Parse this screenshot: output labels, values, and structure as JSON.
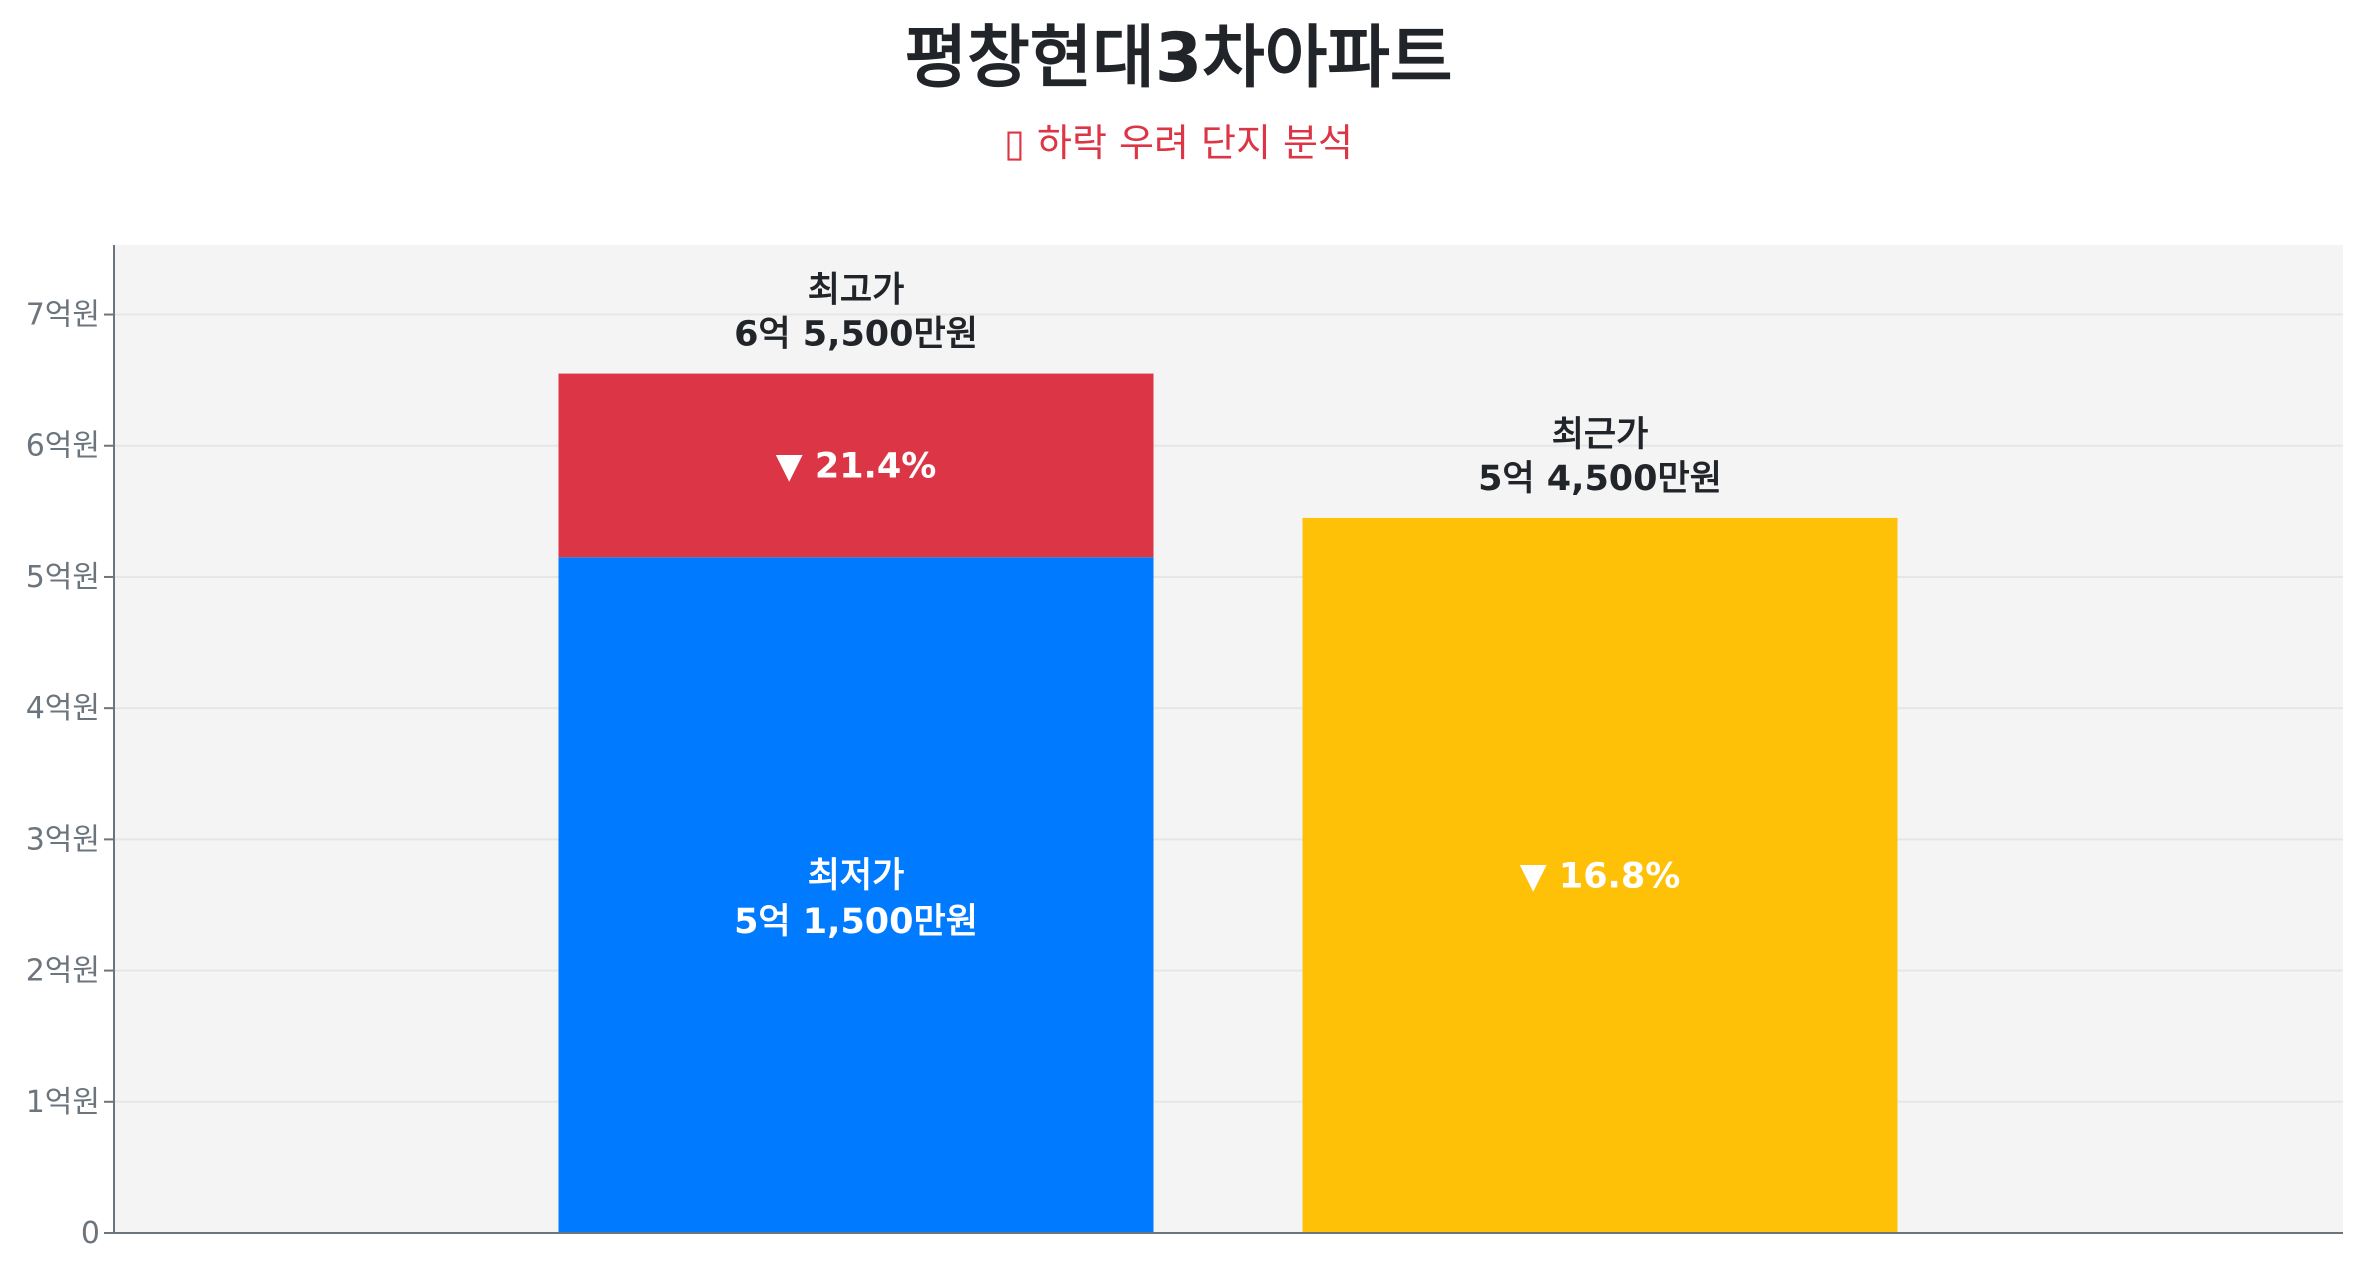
{
  "title": "평창현대3차아파트",
  "subtitle": "▯ 하락 우려 단지 분석",
  "chart_data": {
    "type": "bar",
    "title": "평창현대3차아파트",
    "subtitle": "▯ 하락 우려 단지 분석",
    "ylim": [
      0,
      7.53
    ],
    "y_unit": "억원",
    "yticks": [
      0,
      1,
      2,
      3,
      4,
      5,
      6,
      7
    ],
    "ytick_labels": [
      "0",
      "1억원",
      "2억원",
      "3억원",
      "4억원",
      "5억원",
      "6억원",
      "7억원"
    ],
    "grid": true,
    "background": "#f4f4f4",
    "bars": [
      {
        "stack": [
          {
            "name": "최저가",
            "value": 5.15,
            "color": "#007bff",
            "label_lines": [
              "최저가",
              "5억 1,500만원"
            ],
            "label_color": "#ffffff"
          },
          {
            "name": "최고가",
            "value": 6.55,
            "color": "#dc3545",
            "inner_label": "▼ 21.4%",
            "label_color": "#ffffff"
          }
        ],
        "top_label_lines": [
          "최고가",
          "6억 5,500만원"
        ]
      },
      {
        "stack": [
          {
            "name": "최근가",
            "value": 5.45,
            "color": "#ffc107",
            "inner_label": "▼ 16.8%",
            "label_color": "#ffffff"
          }
        ],
        "top_label_lines": [
          "최근가",
          "5억 4,500만원"
        ]
      }
    ]
  }
}
